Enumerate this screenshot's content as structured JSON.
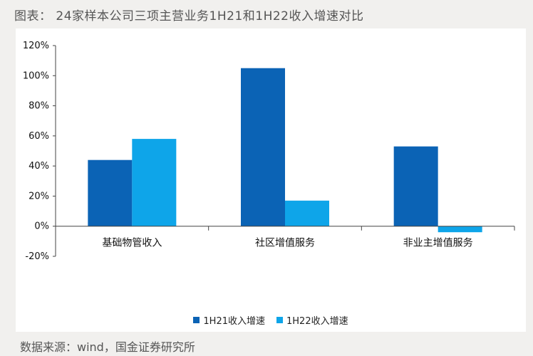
{
  "figure": {
    "title": "图表： 24家样本公司三项主营业务1H21和1H22收入增速对比",
    "source": "数据来源：wind，国金证券研究所"
  },
  "chart_data": {
    "type": "bar",
    "title": "",
    "xlabel": "",
    "ylabel": "",
    "categories": [
      "基础物管收入",
      "社区增值服务",
      "非业主增值服务"
    ],
    "series": [
      {
        "name": "1H21收入增速",
        "values": [
          44,
          105,
          53
        ],
        "color": "#0b63b5"
      },
      {
        "name": "1H22收入增速",
        "values": [
          58,
          17,
          -4
        ],
        "color": "#0ea5e9"
      }
    ],
    "ylim": [
      -20,
      120
    ],
    "yticks": [
      -20,
      0,
      20,
      40,
      60,
      80,
      100,
      120
    ],
    "ytick_labels": [
      "-20%",
      "0%",
      "20%",
      "40%",
      "60%",
      "80%",
      "100%",
      "120%"
    ],
    "grid": false,
    "legend_position": "bottom-center"
  }
}
